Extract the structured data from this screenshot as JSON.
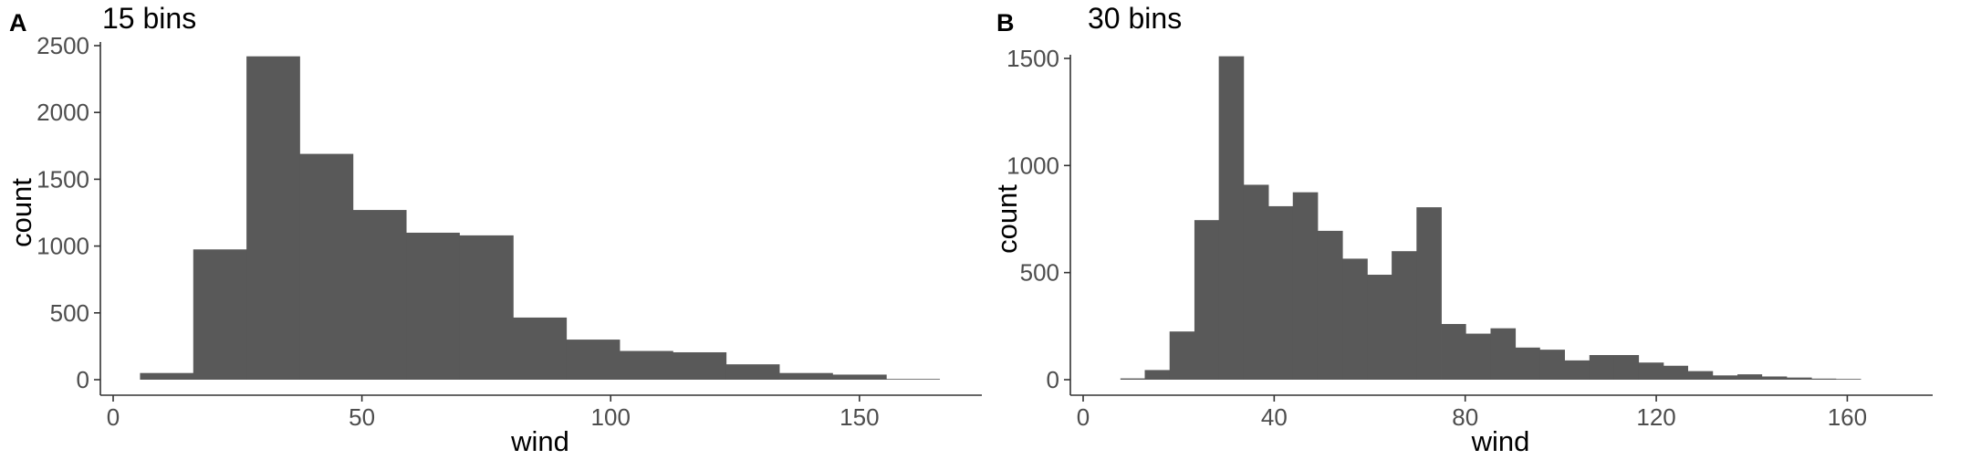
{
  "chart_data": [
    {
      "type": "bar",
      "panel_label": "A",
      "title": "15 bins",
      "xlabel": "wind",
      "ylabel": "count",
      "xlim": [
        0,
        168
      ],
      "ylim": [
        0,
        2500
      ],
      "x_ticks": [
        0,
        50,
        100,
        150
      ],
      "y_ticks": [
        0,
        500,
        1000,
        1500,
        2000,
        2500
      ],
      "grid": false,
      "bin_width": 10.7,
      "bins": [
        {
          "start": 5.4,
          "end": 16.1,
          "count": 50
        },
        {
          "start": 16.1,
          "end": 26.8,
          "count": 975
        },
        {
          "start": 26.8,
          "end": 37.5,
          "count": 2420
        },
        {
          "start": 37.5,
          "end": 48.2,
          "count": 1690
        },
        {
          "start": 48.2,
          "end": 58.9,
          "count": 1270
        },
        {
          "start": 58.9,
          "end": 69.6,
          "count": 1100
        },
        {
          "start": 69.6,
          "end": 80.4,
          "count": 1080
        },
        {
          "start": 80.4,
          "end": 91.1,
          "count": 465
        },
        {
          "start": 91.1,
          "end": 101.8,
          "count": 300
        },
        {
          "start": 101.8,
          "end": 112.5,
          "count": 215
        },
        {
          "start": 112.5,
          "end": 123.2,
          "count": 205
        },
        {
          "start": 123.2,
          "end": 133.9,
          "count": 115
        },
        {
          "start": 133.9,
          "end": 144.6,
          "count": 50
        },
        {
          "start": 144.6,
          "end": 155.4,
          "count": 38
        },
        {
          "start": 155.4,
          "end": 166.1,
          "count": 3
        }
      ]
    },
    {
      "type": "bar",
      "panel_label": "B",
      "title": "30 bins",
      "xlabel": "wind",
      "ylabel": "count",
      "xlim": [
        0,
        171
      ],
      "ylim": [
        0,
        1500
      ],
      "x_ticks": [
        0,
        40,
        80,
        120,
        160
      ],
      "y_ticks": [
        0,
        500,
        1000,
        1500
      ],
      "grid": false,
      "bin_width": 5.17,
      "bins": [
        {
          "start": 7.8,
          "end": 12.9,
          "count": 6
        },
        {
          "start": 12.9,
          "end": 18.1,
          "count": 45
        },
        {
          "start": 18.1,
          "end": 23.3,
          "count": 225
        },
        {
          "start": 23.3,
          "end": 28.4,
          "count": 745
        },
        {
          "start": 28.4,
          "end": 33.6,
          "count": 1510
        },
        {
          "start": 33.6,
          "end": 38.8,
          "count": 910
        },
        {
          "start": 38.8,
          "end": 43.9,
          "count": 810
        },
        {
          "start": 43.9,
          "end": 49.1,
          "count": 875
        },
        {
          "start": 49.1,
          "end": 54.3,
          "count": 695
        },
        {
          "start": 54.3,
          "end": 59.5,
          "count": 565
        },
        {
          "start": 59.5,
          "end": 64.6,
          "count": 490
        },
        {
          "start": 64.6,
          "end": 69.8,
          "count": 600
        },
        {
          "start": 69.8,
          "end": 75.0,
          "count": 805
        },
        {
          "start": 75.0,
          "end": 80.1,
          "count": 260
        },
        {
          "start": 80.1,
          "end": 85.3,
          "count": 215
        },
        {
          "start": 85.3,
          "end": 90.5,
          "count": 240
        },
        {
          "start": 90.5,
          "end": 95.6,
          "count": 150
        },
        {
          "start": 95.6,
          "end": 100.8,
          "count": 140
        },
        {
          "start": 100.8,
          "end": 106.0,
          "count": 90
        },
        {
          "start": 106.0,
          "end": 111.1,
          "count": 115
        },
        {
          "start": 111.1,
          "end": 116.3,
          "count": 115
        },
        {
          "start": 116.3,
          "end": 121.5,
          "count": 80
        },
        {
          "start": 121.5,
          "end": 126.6,
          "count": 65
        },
        {
          "start": 126.6,
          "end": 131.8,
          "count": 40
        },
        {
          "start": 131.8,
          "end": 137.0,
          "count": 20
        },
        {
          "start": 137.0,
          "end": 142.1,
          "count": 25
        },
        {
          "start": 142.1,
          "end": 147.3,
          "count": 15
        },
        {
          "start": 147.3,
          "end": 152.5,
          "count": 10
        },
        {
          "start": 152.5,
          "end": 157.6,
          "count": 5
        },
        {
          "start": 157.6,
          "end": 162.8,
          "count": 2
        }
      ]
    }
  ]
}
